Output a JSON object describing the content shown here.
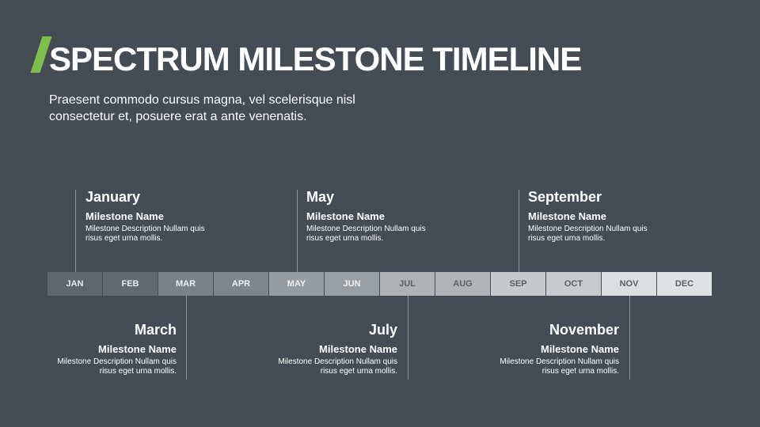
{
  "title": "SPECTRUM MILESTONE TIMELINE",
  "subtitle": "Praesent commodo cursus magna, vel scelerisque nisl consectetur et, posuere erat a ante venenatis.",
  "accent": "#7cc04b",
  "months": [
    {
      "label": "JAN",
      "color": "#5f676e",
      "text": "#e8eaeb"
    },
    {
      "label": "FEB",
      "color": "#626a71",
      "text": "#e8eaeb"
    },
    {
      "label": "MAR",
      "color": "#7a8288",
      "text": "#eef0f1"
    },
    {
      "label": "APR",
      "color": "#7e868c",
      "text": "#eef0f1"
    },
    {
      "label": "MAY",
      "color": "#959b9f",
      "text": "#f2f3f4"
    },
    {
      "label": "JUN",
      "color": "#989ea2",
      "text": "#f2f3f4"
    },
    {
      "label": "JUL",
      "color": "#aeb2b5",
      "text": "#5a6066"
    },
    {
      "label": "AUG",
      "color": "#b0b4b7",
      "text": "#5a6066"
    },
    {
      "label": "SEP",
      "color": "#c6c9cb",
      "text": "#5a6066"
    },
    {
      "label": "OCT",
      "color": "#c8cbcd",
      "text": "#5a6066"
    },
    {
      "label": "NOV",
      "color": "#dcdedf",
      "text": "#5a6066"
    },
    {
      "label": "DEC",
      "color": "#dfe1e2",
      "text": "#5a6066"
    }
  ],
  "milestones": [
    {
      "month": "January",
      "name": "Milestone Name",
      "desc": "Milestone Description Nullam quis risus eget urna mollis."
    },
    {
      "month": "May",
      "name": "Milestone Name",
      "desc": "Milestone Description Nullam quis risus eget urna mollis."
    },
    {
      "month": "September",
      "name": "Milestone Name",
      "desc": "Milestone Description Nullam quis risus eget urna mollis."
    },
    {
      "month": "March",
      "name": "Milestone Name",
      "desc": "Milestone Description Nullam quis risus eget urna mollis."
    },
    {
      "month": "July",
      "name": "Milestone Name",
      "desc": "Milestone Description Nullam quis risus eget urna mollis."
    },
    {
      "month": "November",
      "name": "Milestone Name",
      "desc": "Milestone Description Nullam quis risus eget urna mollis."
    }
  ]
}
